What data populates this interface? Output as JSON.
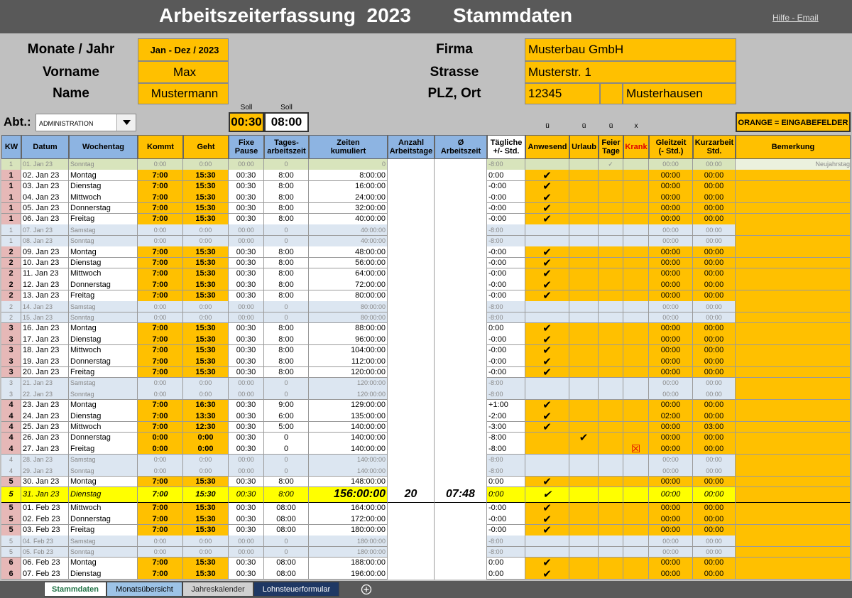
{
  "header": {
    "title": "Arbeitszeiterfassung  2023",
    "subtitle": "Stammdaten",
    "link": "Hilfe - Email"
  },
  "stammdaten": {
    "monate_label": "Monate / Jahr",
    "monate": "Jan - Dez / 2023",
    "vorname_label": "Vorname",
    "vorname": "Max",
    "name_label": "Name",
    "name": "Mustermann",
    "firma_label": "Firma",
    "firma": "Musterbau GmbH",
    "strasse_label": "Strasse",
    "strasse": "Musterstr. 1",
    "ort_label": "PLZ, Ort",
    "plz": "12345",
    "ort": "Musterhausen",
    "abt_label": "Abt.:",
    "abt": "ADMINISTRATION",
    "soll_pause_label": "Soll",
    "soll_pause": "00:30",
    "soll_tag_label": "Soll",
    "soll_tag": "08:00",
    "legend": "ORANGE = EINGABEFELDER"
  },
  "table": {
    "markers": [
      null,
      null,
      null,
      null,
      null,
      null,
      null,
      null,
      null,
      null,
      null,
      "ü",
      "ü",
      "ü",
      "x",
      null,
      null,
      null
    ],
    "columns": [
      "KW",
      "Datum",
      "Wochentag",
      "Kommt",
      "Geht",
      "Fixe\nPause",
      "Tages-\narbeitszeit",
      "Zeiten\nkumuliert",
      "Anzahl\nArbeitstage",
      "Ø\nArbeitszeit",
      "Tägliche\n+/- Std.",
      "Anwesend",
      "Urlaub",
      "Feier\nTage",
      "Krank",
      "Gleitzeit\n(- Std.)",
      "Kurzarbeit\nStd.",
      "Bemerkung"
    ],
    "rows": [
      [
        1,
        "01. Jan 23",
        "Sonntag",
        "0:00",
        "0:00",
        "00:00",
        "0",
        "0",
        null,
        null,
        "-8:00",
        null,
        null,
        "✓",
        null,
        "00:00",
        "00:00",
        "Neujahrstag"
      ],
      [
        1,
        "02. Jan 23",
        "Montag",
        "7:00",
        "15:30",
        "00:30",
        "8:00",
        "8:00:00",
        null,
        null,
        "0:00",
        "✔",
        null,
        null,
        null,
        "00:00",
        "00:00",
        null
      ],
      [
        1,
        "03. Jan 23",
        "Dienstag",
        "7:00",
        "15:30",
        "00:30",
        "8:00",
        "16:00:00",
        null,
        null,
        "-0:00",
        "✔",
        null,
        null,
        null,
        "00:00",
        "00:00",
        null
      ],
      [
        1,
        "04. Jan 23",
        "Mittwoch",
        "7:00",
        "15:30",
        "00:30",
        "8:00",
        "24:00:00",
        null,
        null,
        "-0:00",
        "✔",
        null,
        null,
        null,
        "00:00",
        "00:00",
        null
      ],
      [
        1,
        "05. Jan 23",
        "Donnerstag",
        "7:00",
        "15:30",
        "00:30",
        "8:00",
        "32:00:00",
        null,
        null,
        "-0:00",
        "✔",
        null,
        null,
        null,
        "00:00",
        "00:00",
        null
      ],
      [
        1,
        "06. Jan 23",
        "Freitag",
        "7:00",
        "15:30",
        "00:30",
        "8:00",
        "40:00:00",
        null,
        null,
        "-0:00",
        "✔",
        null,
        null,
        null,
        "00:00",
        "00:00",
        null
      ],
      [
        1,
        "07. Jan 23",
        "Samstag",
        "0:00",
        "0:00",
        "00:00",
        "0",
        "40:00:00",
        null,
        null,
        "-8:00",
        null,
        null,
        null,
        null,
        "00:00",
        "00:00",
        null
      ],
      [
        1,
        "08. Jan 23",
        "Sonntag",
        "0:00",
        "0:00",
        "00:00",
        "0",
        "40:00:00",
        null,
        null,
        "-8:00",
        null,
        null,
        null,
        null,
        "00:00",
        "00:00",
        null
      ],
      [
        2,
        "09. Jan 23",
        "Montag",
        "7:00",
        "15:30",
        "00:30",
        "8:00",
        "48:00:00",
        null,
        null,
        "-0:00",
        "✔",
        null,
        null,
        null,
        "00:00",
        "00:00",
        null
      ],
      [
        2,
        "10. Jan 23",
        "Dienstag",
        "7:00",
        "15:30",
        "00:30",
        "8:00",
        "56:00:00",
        null,
        null,
        "-0:00",
        "✔",
        null,
        null,
        null,
        "00:00",
        "00:00",
        null
      ],
      [
        2,
        "11. Jan 23",
        "Mittwoch",
        "7:00",
        "15:30",
        "00:30",
        "8:00",
        "64:00:00",
        null,
        null,
        "-0:00",
        "✔",
        null,
        null,
        null,
        "00:00",
        "00:00",
        null
      ],
      [
        2,
        "12. Jan 23",
        "Donnerstag",
        "7:00",
        "15:30",
        "00:30",
        "8:00",
        "72:00:00",
        null,
        null,
        "-0:00",
        "✔",
        null,
        null,
        null,
        "00:00",
        "00:00",
        null
      ],
      [
        2,
        "13. Jan 23",
        "Freitag",
        "7:00",
        "15:30",
        "00:30",
        "8:00",
        "80:00:00",
        null,
        null,
        "-0:00",
        "✔",
        null,
        null,
        null,
        "00:00",
        "00:00",
        null
      ],
      [
        2,
        "14. Jan 23",
        "Samstag",
        "0:00",
        "0:00",
        "00:00",
        "0",
        "80:00:00",
        null,
        null,
        "-8:00",
        null,
        null,
        null,
        null,
        "00:00",
        "00:00",
        null
      ],
      [
        2,
        "15. Jan 23",
        "Sonntag",
        "0:00",
        "0:00",
        "00:00",
        "0",
        "80:00:00",
        null,
        null,
        "-8:00",
        null,
        null,
        null,
        null,
        "00:00",
        "00:00",
        null
      ],
      [
        3,
        "16. Jan 23",
        "Montag",
        "7:00",
        "15:30",
        "00:30",
        "8:00",
        "88:00:00",
        null,
        null,
        "0:00",
        "✔",
        null,
        null,
        null,
        "00:00",
        "00:00",
        null
      ],
      [
        3,
        "17. Jan 23",
        "Dienstag",
        "7:00",
        "15:30",
        "00:30",
        "8:00",
        "96:00:00",
        null,
        null,
        "-0:00",
        "✔",
        null,
        null,
        null,
        "00:00",
        "00:00",
        null
      ],
      [
        3,
        "18. Jan 23",
        "Mittwoch",
        "7:00",
        "15:30",
        "00:30",
        "8:00",
        "104:00:00",
        null,
        null,
        "-0:00",
        "✔",
        null,
        null,
        null,
        "00:00",
        "00:00",
        null
      ],
      [
        3,
        "19. Jan 23",
        "Donnerstag",
        "7:00",
        "15:30",
        "00:30",
        "8:00",
        "112:00:00",
        null,
        null,
        "-0:00",
        "✔",
        null,
        null,
        null,
        "00:00",
        "00:00",
        null
      ],
      [
        3,
        "20. Jan 23",
        "Freitag",
        "7:00",
        "15:30",
        "00:30",
        "8:00",
        "120:00:00",
        null,
        null,
        "-0:00",
        "✔",
        null,
        null,
        null,
        "00:00",
        "00:00",
        null
      ],
      [
        3,
        "21. Jan 23",
        "Samstag",
        "0:00",
        "0:00",
        "00:00",
        "0",
        "120:00:00",
        null,
        null,
        "-8:00",
        null,
        null,
        null,
        null,
        "00:00",
        "00:00",
        null
      ],
      [
        3,
        "22. Jan 23",
        "Sonntag",
        "0:00",
        "0:00",
        "00:00",
        "0",
        "120:00:00",
        null,
        null,
        "-8:00",
        null,
        null,
        null,
        null,
        "00:00",
        "00:00",
        null
      ],
      [
        4,
        "23. Jan 23",
        "Montag",
        "7:00",
        "16:30",
        "00:30",
        "9:00",
        "129:00:00",
        null,
        null,
        "+1:00",
        "✔",
        null,
        null,
        null,
        "00:00",
        "00:00",
        null
      ],
      [
        4,
        "24. Jan 23",
        "Dienstag",
        "7:00",
        "13:30",
        "00:30",
        "6:00",
        "135:00:00",
        null,
        null,
        "-2:00",
        "✔",
        null,
        null,
        null,
        "02:00",
        "00:00",
        null
      ],
      [
        4,
        "25. Jan 23",
        "Mittwoch",
        "7:00",
        "12:30",
        "00:30",
        "5:00",
        "140:00:00",
        null,
        null,
        "-3:00",
        "✔",
        null,
        null,
        null,
        "00:00",
        "03:00",
        null
      ],
      [
        4,
        "26. Jan 23",
        "Donnerstag",
        "0:00",
        "0:00",
        "00:30",
        "0",
        "140:00:00",
        null,
        null,
        "-8:00",
        null,
        "✔",
        null,
        null,
        "00:00",
        "00:00",
        null
      ],
      [
        4,
        "27. Jan 23",
        "Freitag",
        "0:00",
        "0:00",
        "00:30",
        "0",
        "140:00:00",
        null,
        null,
        "-8:00",
        null,
        null,
        null,
        "☒",
        "00:00",
        "00:00",
        null
      ],
      [
        4,
        "28. Jan 23",
        "Samstag",
        "0:00",
        "0:00",
        "00:00",
        "0",
        "140:00:00",
        null,
        null,
        "-8:00",
        null,
        null,
        null,
        null,
        "00:00",
        "00:00",
        null
      ],
      [
        4,
        "29. Jan 23",
        "Sonntag",
        "0:00",
        "0:00",
        "00:00",
        "0",
        "140:00:00",
        null,
        null,
        "-8:00",
        null,
        null,
        null,
        null,
        "00:00",
        "00:00",
        null
      ],
      [
        5,
        "30. Jan 23",
        "Montag",
        "7:00",
        "15:30",
        "00:30",
        "8:00",
        "148:00:00",
        null,
        null,
        "0:00",
        "✔",
        null,
        null,
        null,
        "00:00",
        "00:00",
        null
      ],
      [
        5,
        "31. Jan 23",
        "Dienstag",
        "7:00",
        "15:30",
        "00:30",
        "8:00",
        "156:00:00",
        20,
        "07:48",
        "0:00",
        "✔",
        null,
        null,
        null,
        "00:00",
        "00:00",
        null
      ],
      [
        5,
        "01. Feb 23",
        "Mittwoch",
        "7:00",
        "15:30",
        "00:30",
        "08:00",
        "164:00:00",
        null,
        null,
        "-0:00",
        "✔",
        null,
        null,
        null,
        "00:00",
        "00:00",
        null
      ],
      [
        5,
        "02. Feb 23",
        "Donnerstag",
        "7:00",
        "15:30",
        "00:30",
        "08:00",
        "172:00:00",
        null,
        null,
        "-0:00",
        "✔",
        null,
        null,
        null,
        "00:00",
        "00:00",
        null
      ],
      [
        5,
        "03. Feb 23",
        "Freitag",
        "7:00",
        "15:30",
        "00:30",
        "08:00",
        "180:00:00",
        null,
        null,
        "-0:00",
        "✔",
        null,
        null,
        null,
        "00:00",
        "00:00",
        null
      ],
      [
        5,
        "04. Feb 23",
        "Samstag",
        "0:00",
        "0:00",
        "00:00",
        "0",
        "180:00:00",
        null,
        null,
        "-8:00",
        null,
        null,
        null,
        null,
        "00:00",
        "00:00",
        null
      ],
      [
        5,
        "05. Feb 23",
        "Sonntag",
        "0:00",
        "0:00",
        "00:00",
        "0",
        "180:00:00",
        null,
        null,
        "-8:00",
        null,
        null,
        null,
        null,
        "00:00",
        "00:00",
        null
      ],
      [
        6,
        "06. Feb 23",
        "Montag",
        "7:00",
        "15:30",
        "00:30",
        "08:00",
        "188:00:00",
        null,
        null,
        "0:00",
        "✔",
        null,
        null,
        null,
        "00:00",
        "00:00",
        null
      ],
      [
        6,
        "07. Feb 23",
        "Dienstag",
        "7:00",
        "15:30",
        "00:30",
        "08:00",
        "196:00:00",
        null,
        null,
        "0:00",
        "✔",
        null,
        null,
        null,
        "00:00",
        "00:00",
        null
      ]
    ]
  },
  "tabs": [
    "Stammdaten",
    "Monatsübersicht",
    "Jahreskalender",
    "Lohnsteuerformular"
  ]
}
